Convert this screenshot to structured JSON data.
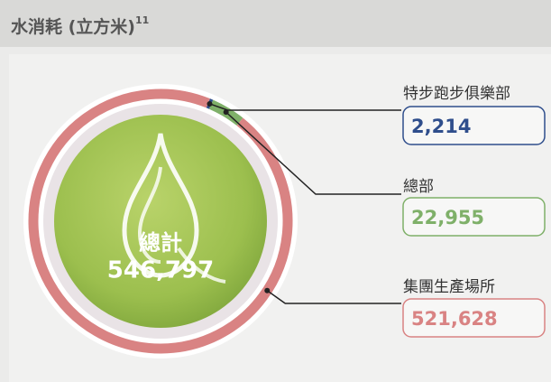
{
  "chart_data": {
    "type": "donut",
    "title": "水消耗 (立方米)",
    "title_note": "11",
    "total": {
      "label": "總計",
      "value": 546797,
      "value_label": "546,797"
    },
    "categories": [
      "特步跑步俱樂部",
      "總部",
      "集團生產場所"
    ],
    "series": [
      {
        "name": "水消耗",
        "colors": [
          "#2f4e8c",
          "#7fb069",
          "#d98383"
        ],
        "values": [
          2214,
          22955,
          521628
        ],
        "value_labels": [
          "2,214",
          "22,955",
          "521,628"
        ]
      }
    ]
  }
}
